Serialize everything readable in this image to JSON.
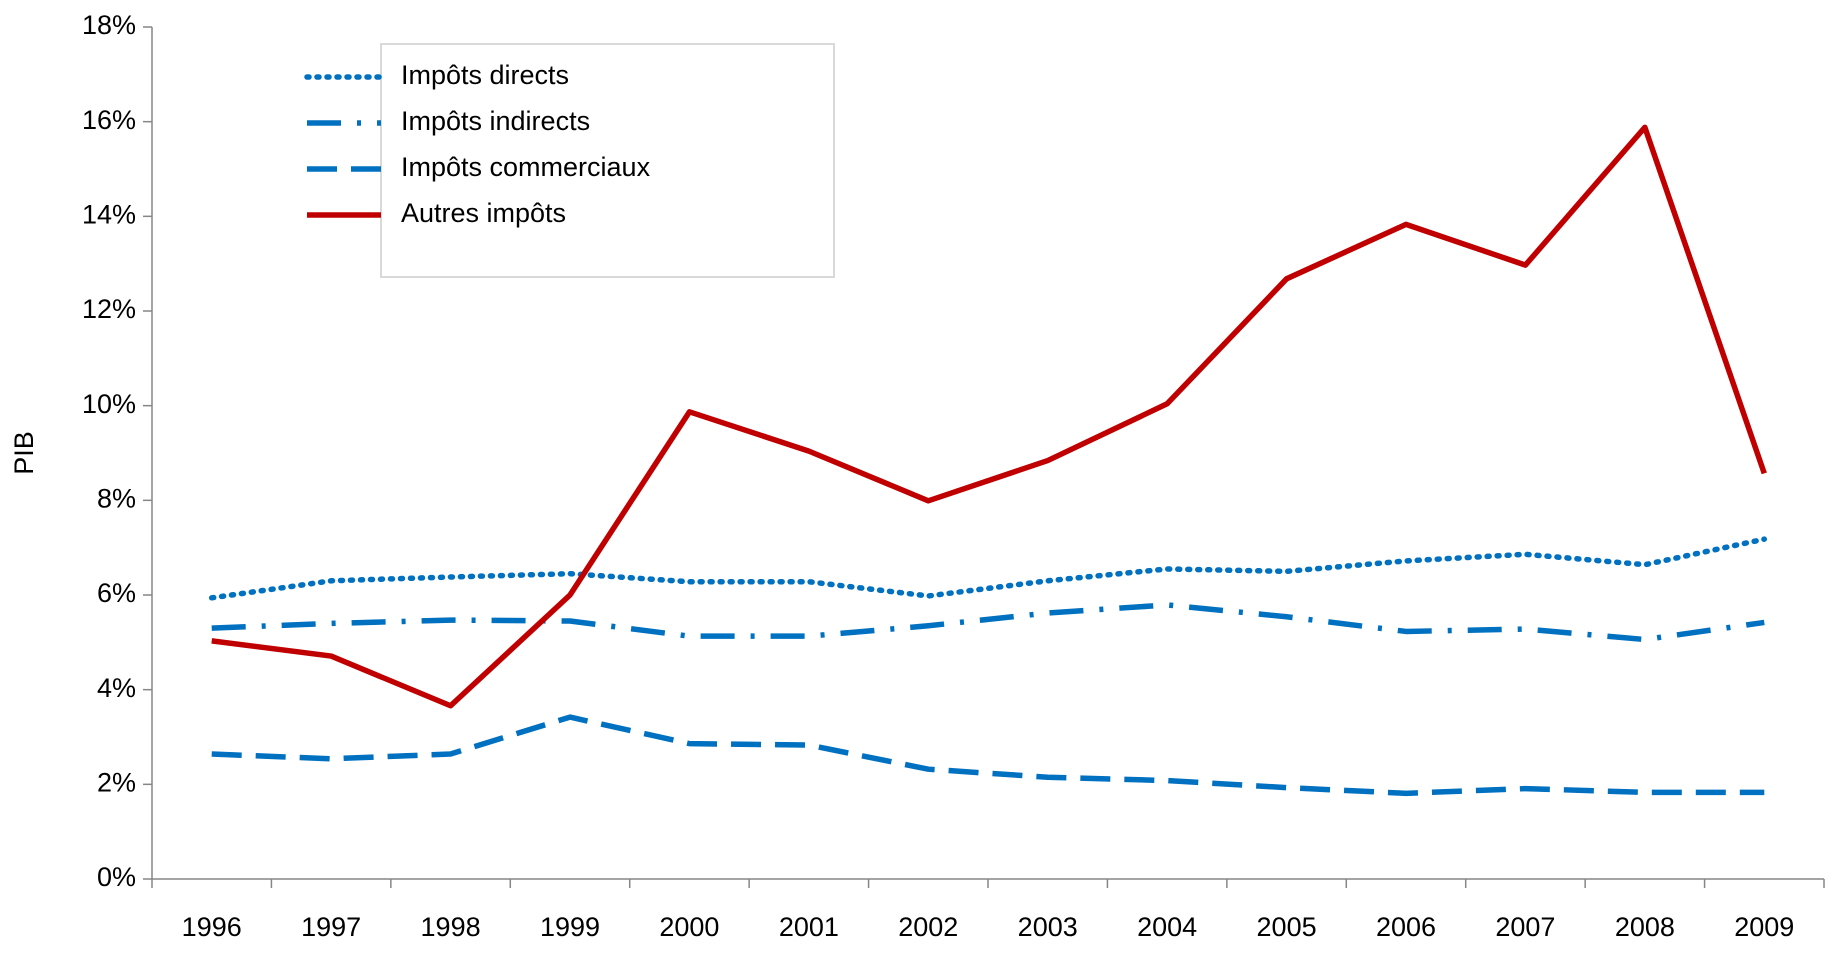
{
  "chart_data": {
    "type": "line",
    "y_label": "PIB",
    "categories": [
      "1996",
      "1997",
      "1998",
      "1999",
      "2000",
      "2001",
      "2002",
      "2003",
      "2004",
      "2005",
      "2006",
      "2007",
      "2008",
      "2009"
    ],
    "series": [
      {
        "name": "Impôts directs",
        "color": "#0070c0",
        "style": "dotted",
        "values": [
          5.94,
          6.3,
          6.38,
          6.45,
          6.28,
          6.28,
          5.98,
          6.3,
          6.55,
          6.5,
          6.72,
          6.86,
          6.64,
          7.18
        ]
      },
      {
        "name": "Impôts indirects",
        "color": "#0070c0",
        "style": "dash-dot",
        "values": [
          5.3,
          5.4,
          5.47,
          5.45,
          5.13,
          5.13,
          5.35,
          5.62,
          5.79,
          5.54,
          5.23,
          5.28,
          5.06,
          5.42
        ]
      },
      {
        "name": "Impôts commerciaux",
        "color": "#0070c0",
        "style": "dashed",
        "values": [
          2.64,
          2.54,
          2.64,
          3.42,
          2.86,
          2.83,
          2.32,
          2.15,
          2.08,
          1.93,
          1.81,
          1.91,
          1.83,
          1.83
        ]
      },
      {
        "name": "Autres impôts",
        "color": "#c00000",
        "style": "solid",
        "values": [
          5.03,
          4.71,
          3.66,
          6.0,
          9.87,
          9.04,
          7.99,
          8.84,
          10.04,
          12.68,
          13.83,
          12.97,
          15.88,
          8.57
        ]
      }
    ],
    "ylim": [
      0,
      18
    ],
    "yticks": [
      {
        "value": 0,
        "label": "0%"
      },
      {
        "value": 2,
        "label": "2%"
      },
      {
        "value": 4,
        "label": "4%"
      },
      {
        "value": 6,
        "label": "6%"
      },
      {
        "value": 8,
        "label": "8%"
      },
      {
        "value": 10,
        "label": "10%"
      },
      {
        "value": 12,
        "label": "12%"
      },
      {
        "value": 14,
        "label": "14%"
      },
      {
        "value": 16,
        "label": "16%"
      },
      {
        "value": 18,
        "label": "18%"
      }
    ],
    "grid": false,
    "legend": "upper left"
  }
}
